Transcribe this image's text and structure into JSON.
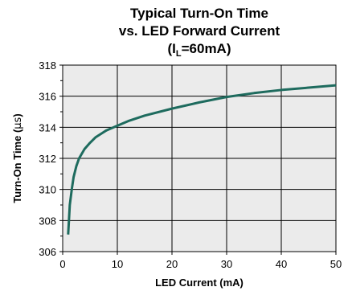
{
  "chart_data": {
    "type": "line",
    "title_lines": [
      "Typical Turn-On Time",
      "vs. LED Forward Current"
    ],
    "title_condition": {
      "prefix": "(I",
      "subscript": "L",
      "suffix": "=60mA)"
    },
    "xlabel": "LED Current (mA)",
    "ylabel_prefix": "Turn-On Time (",
    "ylabel_unit": "µs",
    "ylabel_suffix": ")",
    "xlim": [
      0,
      50
    ],
    "ylim": [
      306,
      318
    ],
    "x_ticks": [
      0,
      10,
      20,
      30,
      40,
      50
    ],
    "y_ticks": [
      306,
      308,
      310,
      312,
      314,
      316,
      318
    ],
    "grid": true,
    "series": [
      {
        "color": "#1e6b5e",
        "x": [
          1,
          1.3,
          1.7,
          2,
          2.5,
          3,
          4,
          5,
          6,
          8,
          10,
          12,
          15,
          20,
          25,
          30,
          35,
          40,
          45,
          50
        ],
        "y": [
          307.1,
          309.0,
          310.1,
          310.8,
          311.5,
          312.0,
          312.6,
          313.0,
          313.35,
          313.8,
          314.1,
          314.4,
          314.75,
          315.2,
          315.6,
          315.95,
          316.2,
          316.4,
          316.55,
          316.7
        ]
      }
    ]
  }
}
